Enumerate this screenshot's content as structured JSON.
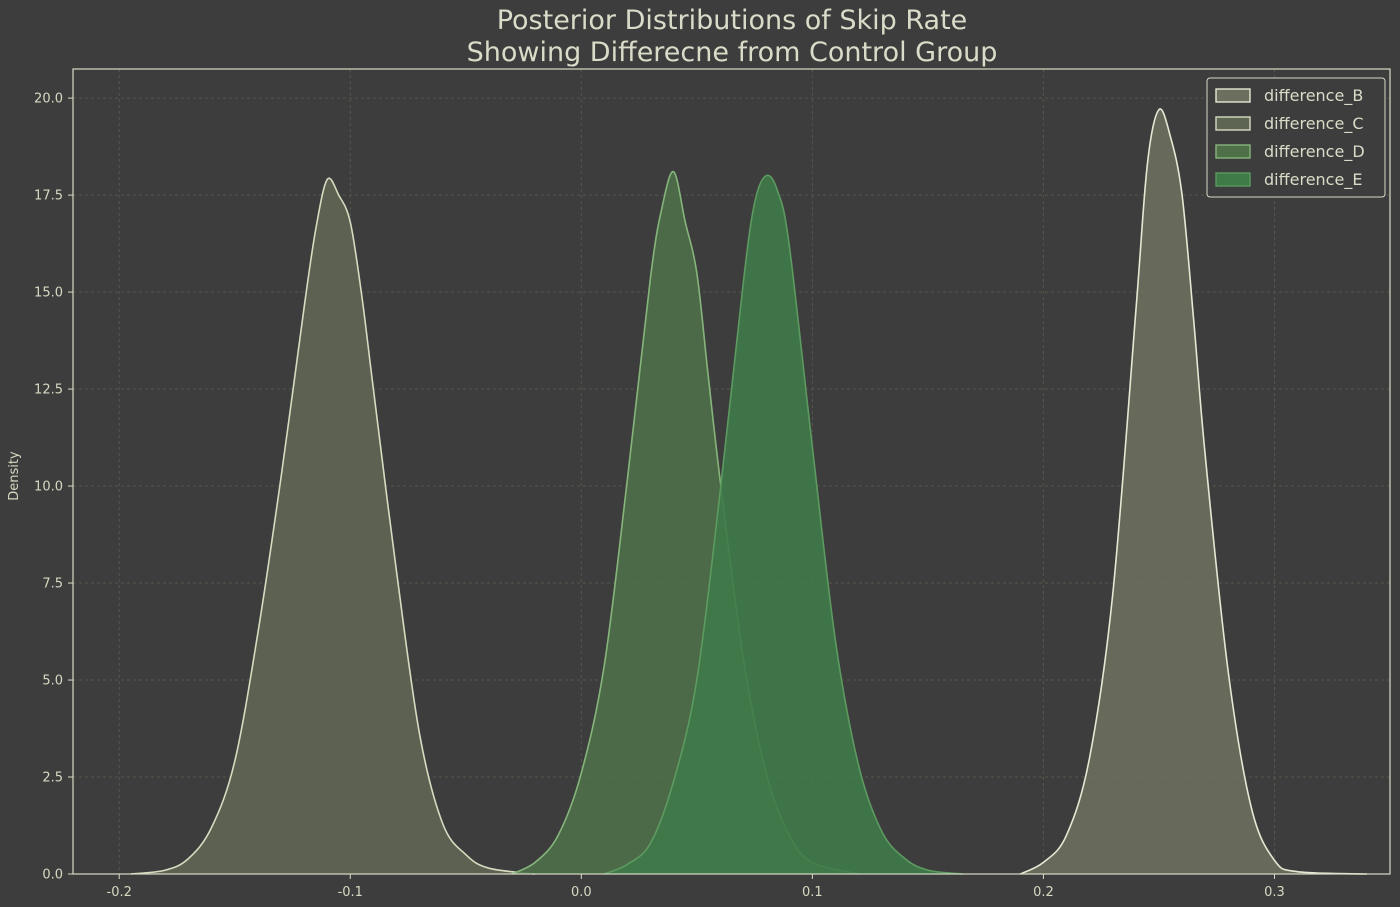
{
  "chart_data": {
    "type": "area",
    "title": "Posterior Distributions of Skip Rate",
    "subtitle": "Showing Differecne from Control Group",
    "xlabel": "",
    "ylabel": "Density",
    "xlim": [
      -0.22,
      0.35
    ],
    "ylim": [
      0,
      20.75
    ],
    "x_ticks": [
      "-0.2",
      "-0.1",
      "0.0",
      "0.1",
      "0.2",
      "0.3"
    ],
    "y_ticks": [
      "0.0",
      "2.5",
      "5.0",
      "7.5",
      "10.0",
      "12.5",
      "15.0",
      "17.5",
      "20.0"
    ],
    "grid": true,
    "legend_position": "top-right",
    "series": [
      {
        "name": "difference_B",
        "fill": "#6c6f5d",
        "stroke": "#e6e8d3",
        "points": [
          [
            0.19,
            0.0
          ],
          [
            0.2,
            0.3
          ],
          [
            0.21,
            1.0
          ],
          [
            0.22,
            3.0
          ],
          [
            0.23,
            7.2
          ],
          [
            0.24,
            14.5
          ],
          [
            0.245,
            18.3
          ],
          [
            0.25,
            19.7
          ],
          [
            0.255,
            19.0
          ],
          [
            0.26,
            17.5
          ],
          [
            0.265,
            14.3
          ],
          [
            0.27,
            10.8
          ],
          [
            0.28,
            5.2
          ],
          [
            0.29,
            1.7
          ],
          [
            0.3,
            0.35
          ],
          [
            0.31,
            0.06
          ],
          [
            0.34,
            0.0
          ]
        ]
      },
      {
        "name": "difference_C",
        "fill": "#5f6553",
        "stroke": "#d6dcc0",
        "points": [
          [
            -0.195,
            0.0
          ],
          [
            -0.18,
            0.1
          ],
          [
            -0.17,
            0.4
          ],
          [
            -0.16,
            1.2
          ],
          [
            -0.15,
            2.9
          ],
          [
            -0.14,
            6.2
          ],
          [
            -0.13,
            10.2
          ],
          [
            -0.12,
            14.6
          ],
          [
            -0.115,
            16.6
          ],
          [
            -0.11,
            17.9
          ],
          [
            -0.105,
            17.5
          ],
          [
            -0.1,
            16.8
          ],
          [
            -0.095,
            14.9
          ],
          [
            -0.09,
            12.5
          ],
          [
            -0.08,
            7.8
          ],
          [
            -0.07,
            3.6
          ],
          [
            -0.06,
            1.3
          ],
          [
            -0.05,
            0.5
          ],
          [
            -0.04,
            0.15
          ],
          [
            -0.02,
            0.0
          ]
        ]
      },
      {
        "name": "difference_D",
        "fill": "#4f6f49",
        "stroke": "#86b57c",
        "points": [
          [
            -0.03,
            0.0
          ],
          [
            -0.02,
            0.3
          ],
          [
            -0.01,
            1.0
          ],
          [
            0.0,
            2.6
          ],
          [
            0.01,
            5.4
          ],
          [
            0.02,
            10.2
          ],
          [
            0.03,
            15.4
          ],
          [
            0.035,
            17.2
          ],
          [
            0.04,
            18.1
          ],
          [
            0.045,
            16.8
          ],
          [
            0.05,
            15.5
          ],
          [
            0.055,
            12.8
          ],
          [
            0.06,
            10.2
          ],
          [
            0.07,
            5.6
          ],
          [
            0.08,
            2.6
          ],
          [
            0.09,
            1.0
          ],
          [
            0.1,
            0.3
          ],
          [
            0.12,
            0.0
          ]
        ]
      },
      {
        "name": "difference_E",
        "fill": "#3f7a49",
        "stroke": "#5c9a60",
        "points": [
          [
            0.01,
            0.0
          ],
          [
            0.02,
            0.25
          ],
          [
            0.03,
            0.8
          ],
          [
            0.04,
            2.4
          ],
          [
            0.05,
            5.0
          ],
          [
            0.06,
            9.8
          ],
          [
            0.07,
            15.2
          ],
          [
            0.075,
            17.3
          ],
          [
            0.08,
            18.0
          ],
          [
            0.085,
            17.6
          ],
          [
            0.09,
            16.2
          ],
          [
            0.1,
            11.0
          ],
          [
            0.11,
            6.0
          ],
          [
            0.12,
            2.8
          ],
          [
            0.13,
            1.1
          ],
          [
            0.14,
            0.4
          ],
          [
            0.15,
            0.1
          ],
          [
            0.165,
            0.0
          ]
        ]
      }
    ]
  }
}
